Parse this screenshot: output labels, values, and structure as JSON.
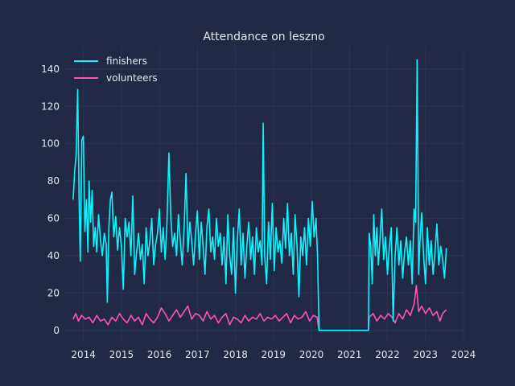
{
  "colors": {
    "background": "#212946",
    "grid": "#2a3459",
    "text": "#e6e8ef",
    "finishers": "#08F7FE",
    "volunteers": "#FE53BB"
  },
  "chart_data": {
    "type": "line",
    "title": "Attendance on leszno",
    "xlabel": "",
    "ylabel": "",
    "xlim": [
      2013.5,
      2024.0
    ],
    "ylim": [
      -7,
      152
    ],
    "grid": true,
    "legend": "top-left",
    "x_ticks": [
      "2014",
      "2015",
      "2016",
      "2017",
      "2018",
      "2019",
      "2020",
      "2021",
      "2022",
      "2023",
      "2024"
    ],
    "y_ticks": [
      "0",
      "20",
      "40",
      "60",
      "80",
      "100",
      "120",
      "140"
    ],
    "series": [
      {
        "name": "finishers",
        "color": "#08F7FE",
        "points": [
          [
            2013.73,
            70
          ],
          [
            2013.77,
            85
          ],
          [
            2013.81,
            94
          ],
          [
            2013.85,
            129
          ],
          [
            2013.89,
            68
          ],
          [
            2013.92,
            37
          ],
          [
            2013.96,
            102
          ],
          [
            2014.0,
            104
          ],
          [
            2014.04,
            53
          ],
          [
            2014.08,
            70
          ],
          [
            2014.12,
            42
          ],
          [
            2014.15,
            80
          ],
          [
            2014.19,
            58
          ],
          [
            2014.23,
            75
          ],
          [
            2014.27,
            45
          ],
          [
            2014.31,
            55
          ],
          [
            2014.35,
            42
          ],
          [
            2014.4,
            62
          ],
          [
            2014.45,
            48
          ],
          [
            2014.5,
            40
          ],
          [
            2014.55,
            52
          ],
          [
            2014.6,
            46
          ],
          [
            2014.63,
            15
          ],
          [
            2014.67,
            55
          ],
          [
            2014.71,
            70
          ],
          [
            2014.75,
            74
          ],
          [
            2014.8,
            50
          ],
          [
            2014.85,
            61
          ],
          [
            2014.9,
            43
          ],
          [
            2014.95,
            55
          ],
          [
            2015.0,
            45
          ],
          [
            2015.05,
            22
          ],
          [
            2015.1,
            60
          ],
          [
            2015.15,
            50
          ],
          [
            2015.2,
            58
          ],
          [
            2015.25,
            40
          ],
          [
            2015.3,
            72
          ],
          [
            2015.35,
            30
          ],
          [
            2015.4,
            42
          ],
          [
            2015.45,
            52
          ],
          [
            2015.5,
            38
          ],
          [
            2015.55,
            46
          ],
          [
            2015.6,
            25
          ],
          [
            2015.65,
            55
          ],
          [
            2015.7,
            40
          ],
          [
            2015.75,
            48
          ],
          [
            2015.8,
            60
          ],
          [
            2015.85,
            35
          ],
          [
            2015.9,
            46
          ],
          [
            2015.95,
            52
          ],
          [
            2016.0,
            65
          ],
          [
            2016.05,
            42
          ],
          [
            2016.1,
            55
          ],
          [
            2016.15,
            38
          ],
          [
            2016.2,
            58
          ],
          [
            2016.25,
            95
          ],
          [
            2016.3,
            60
          ],
          [
            2016.35,
            45
          ],
          [
            2016.4,
            52
          ],
          [
            2016.45,
            40
          ],
          [
            2016.5,
            62
          ],
          [
            2016.55,
            48
          ],
          [
            2016.6,
            35
          ],
          [
            2016.65,
            55
          ],
          [
            2016.7,
            84
          ],
          [
            2016.75,
            42
          ],
          [
            2016.8,
            58
          ],
          [
            2016.85,
            48
          ],
          [
            2016.9,
            35
          ],
          [
            2016.95,
            52
          ],
          [
            2017.0,
            64
          ],
          [
            2017.05,
            38
          ],
          [
            2017.1,
            58
          ],
          [
            2017.15,
            45
          ],
          [
            2017.2,
            30
          ],
          [
            2017.25,
            55
          ],
          [
            2017.3,
            65
          ],
          [
            2017.35,
            42
          ],
          [
            2017.4,
            50
          ],
          [
            2017.45,
            38
          ],
          [
            2017.5,
            60
          ],
          [
            2017.55,
            45
          ],
          [
            2017.6,
            52
          ],
          [
            2017.65,
            35
          ],
          [
            2017.7,
            50
          ],
          [
            2017.75,
            25
          ],
          [
            2017.8,
            62
          ],
          [
            2017.85,
            40
          ],
          [
            2017.9,
            30
          ],
          [
            2017.95,
            55
          ],
          [
            2018.0,
            20
          ],
          [
            2018.05,
            48
          ],
          [
            2018.1,
            65
          ],
          [
            2018.15,
            35
          ],
          [
            2018.2,
            52
          ],
          [
            2018.25,
            28
          ],
          [
            2018.3,
            45
          ],
          [
            2018.35,
            58
          ],
          [
            2018.4,
            38
          ],
          [
            2018.45,
            50
          ],
          [
            2018.5,
            30
          ],
          [
            2018.55,
            55
          ],
          [
            2018.6,
            42
          ],
          [
            2018.65,
            48
          ],
          [
            2018.7,
            35
          ],
          [
            2018.73,
            111
          ],
          [
            2018.77,
            40
          ],
          [
            2018.82,
            25
          ],
          [
            2018.87,
            58
          ],
          [
            2018.92,
            38
          ],
          [
            2018.97,
            68
          ],
          [
            2019.02,
            32
          ],
          [
            2019.07,
            55
          ],
          [
            2019.12,
            42
          ],
          [
            2019.17,
            48
          ],
          [
            2019.22,
            36
          ],
          [
            2019.27,
            60
          ],
          [
            2019.32,
            44
          ],
          [
            2019.37,
            68
          ],
          [
            2019.42,
            40
          ],
          [
            2019.47,
            52
          ],
          [
            2019.52,
            30
          ],
          [
            2019.57,
            62
          ],
          [
            2019.62,
            45
          ],
          [
            2019.67,
            18
          ],
          [
            2019.72,
            50
          ],
          [
            2019.77,
            40
          ],
          [
            2019.82,
            55
          ],
          [
            2019.87,
            35
          ],
          [
            2019.92,
            60
          ],
          [
            2019.97,
            45
          ],
          [
            2020.02,
            69
          ],
          [
            2020.07,
            50
          ],
          [
            2020.12,
            60
          ],
          [
            2020.16,
            40
          ],
          [
            2020.2,
            0
          ],
          [
            2021.5,
            0
          ],
          [
            2021.52,
            52
          ],
          [
            2021.56,
            45
          ],
          [
            2021.6,
            25
          ],
          [
            2021.64,
            62
          ],
          [
            2021.68,
            40
          ],
          [
            2021.72,
            55
          ],
          [
            2021.76,
            35
          ],
          [
            2021.8,
            48
          ],
          [
            2021.85,
            65
          ],
          [
            2021.9,
            38
          ],
          [
            2021.95,
            50
          ],
          [
            2022.0,
            30
          ],
          [
            2022.05,
            45
          ],
          [
            2022.1,
            55
          ],
          [
            2022.15,
            5
          ],
          [
            2022.2,
            40
          ],
          [
            2022.25,
            55
          ],
          [
            2022.3,
            35
          ],
          [
            2022.35,
            48
          ],
          [
            2022.4,
            28
          ],
          [
            2022.45,
            42
          ],
          [
            2022.5,
            50
          ],
          [
            2022.55,
            35
          ],
          [
            2022.6,
            48
          ],
          [
            2022.65,
            25
          ],
          [
            2022.7,
            65
          ],
          [
            2022.74,
            58
          ],
          [
            2022.78,
            145
          ],
          [
            2022.82,
            30
          ],
          [
            2022.86,
            50
          ],
          [
            2022.9,
            63
          ],
          [
            2022.95,
            40
          ],
          [
            2023.0,
            25
          ],
          [
            2023.05,
            55
          ],
          [
            2023.1,
            35
          ],
          [
            2023.15,
            48
          ],
          [
            2023.2,
            30
          ],
          [
            2023.25,
            42
          ],
          [
            2023.3,
            57
          ],
          [
            2023.35,
            35
          ],
          [
            2023.4,
            45
          ],
          [
            2023.45,
            38
          ],
          [
            2023.5,
            28
          ],
          [
            2023.55,
            44
          ]
        ]
      },
      {
        "name": "volunteers",
        "color": "#FE53BB",
        "points": [
          [
            2013.73,
            6
          ],
          [
            2013.8,
            9
          ],
          [
            2013.87,
            5
          ],
          [
            2013.95,
            8
          ],
          [
            2014.05,
            6
          ],
          [
            2014.15,
            7
          ],
          [
            2014.25,
            4
          ],
          [
            2014.35,
            8
          ],
          [
            2014.45,
            5
          ],
          [
            2014.55,
            6
          ],
          [
            2014.65,
            3
          ],
          [
            2014.75,
            7
          ],
          [
            2014.85,
            5
          ],
          [
            2014.95,
            9
          ],
          [
            2015.05,
            6
          ],
          [
            2015.15,
            4
          ],
          [
            2015.25,
            8
          ],
          [
            2015.35,
            5
          ],
          [
            2015.45,
            7
          ],
          [
            2015.55,
            3
          ],
          [
            2015.65,
            9
          ],
          [
            2015.75,
            6
          ],
          [
            2015.85,
            4
          ],
          [
            2015.95,
            7
          ],
          [
            2016.05,
            12
          ],
          [
            2016.15,
            9
          ],
          [
            2016.25,
            5
          ],
          [
            2016.35,
            8
          ],
          [
            2016.45,
            11
          ],
          [
            2016.55,
            7
          ],
          [
            2016.65,
            10
          ],
          [
            2016.75,
            13
          ],
          [
            2016.85,
            6
          ],
          [
            2016.95,
            9
          ],
          [
            2017.05,
            8
          ],
          [
            2017.15,
            5
          ],
          [
            2017.25,
            10
          ],
          [
            2017.35,
            6
          ],
          [
            2017.45,
            8
          ],
          [
            2017.55,
            4
          ],
          [
            2017.65,
            7
          ],
          [
            2017.75,
            9
          ],
          [
            2017.85,
            3
          ],
          [
            2017.95,
            7
          ],
          [
            2018.05,
            6
          ],
          [
            2018.15,
            4
          ],
          [
            2018.25,
            8
          ],
          [
            2018.35,
            5
          ],
          [
            2018.45,
            7
          ],
          [
            2018.55,
            6
          ],
          [
            2018.65,
            9
          ],
          [
            2018.75,
            5
          ],
          [
            2018.85,
            7
          ],
          [
            2018.95,
            6
          ],
          [
            2019.05,
            8
          ],
          [
            2019.15,
            5
          ],
          [
            2019.25,
            7
          ],
          [
            2019.35,
            9
          ],
          [
            2019.45,
            4
          ],
          [
            2019.55,
            8
          ],
          [
            2019.65,
            6
          ],
          [
            2019.75,
            7
          ],
          [
            2019.85,
            10
          ],
          [
            2019.95,
            5
          ],
          [
            2020.05,
            8
          ],
          [
            2020.15,
            7
          ],
          [
            2020.2,
            0
          ],
          [
            2021.5,
            0
          ],
          [
            2021.52,
            7
          ],
          [
            2021.62,
            9
          ],
          [
            2021.72,
            5
          ],
          [
            2021.82,
            8
          ],
          [
            2021.92,
            6
          ],
          [
            2022.02,
            9
          ],
          [
            2022.12,
            7
          ],
          [
            2022.2,
            4
          ],
          [
            2022.3,
            9
          ],
          [
            2022.4,
            6
          ],
          [
            2022.5,
            11
          ],
          [
            2022.6,
            8
          ],
          [
            2022.7,
            14
          ],
          [
            2022.76,
            24
          ],
          [
            2022.82,
            10
          ],
          [
            2022.9,
            13
          ],
          [
            2023.0,
            9
          ],
          [
            2023.1,
            12
          ],
          [
            2023.2,
            8
          ],
          [
            2023.3,
            10
          ],
          [
            2023.38,
            5
          ],
          [
            2023.45,
            9
          ],
          [
            2023.55,
            11
          ]
        ]
      }
    ]
  }
}
